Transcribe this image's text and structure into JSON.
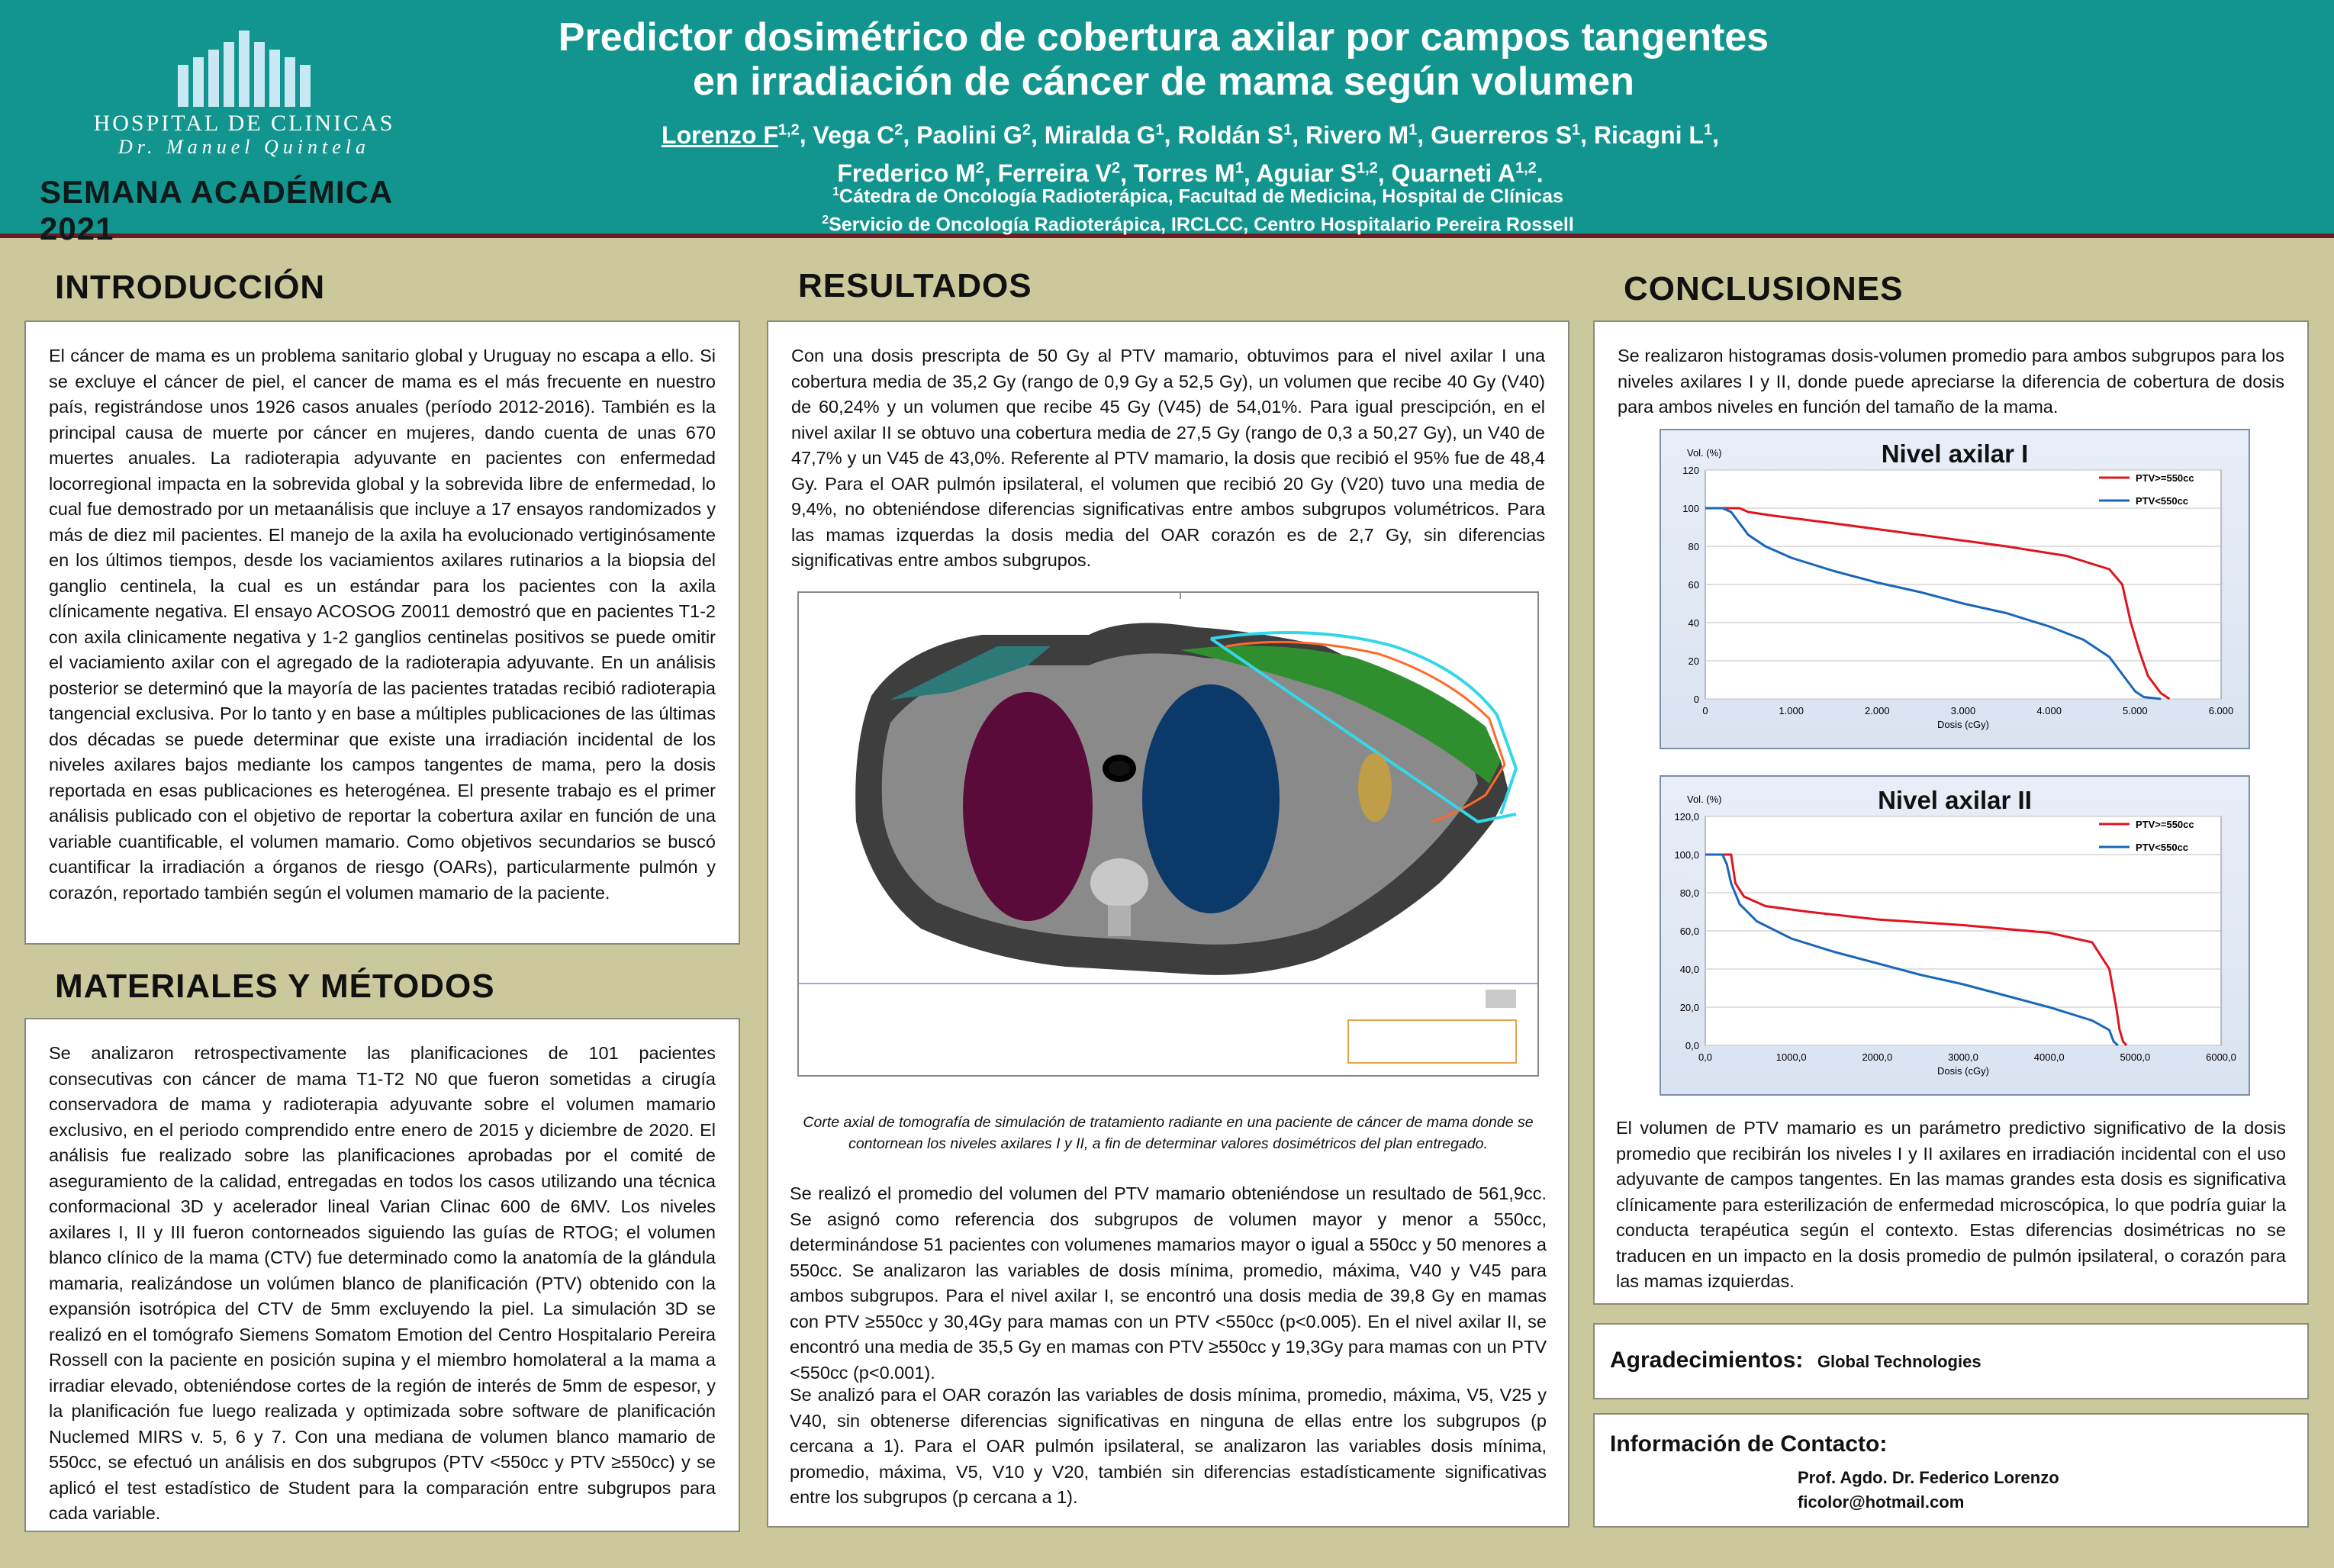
{
  "header": {
    "logo_name": "HOSPITAL DE CLINICAS",
    "logo_sub": "Dr. Manuel Quintela",
    "event": "SEMANA ACADÉMICA 2021",
    "title_line1": "Predictor dosimétrico de cobertura axilar por campos tangentes",
    "title_line2": "en irradiación de cáncer de mama según volumen",
    "authors_line1": [
      {
        "name": "Lorenzo F",
        "sup": "1,2",
        "underline": true
      },
      {
        "name": "Vega C",
        "sup": "2"
      },
      {
        "name": "Paolini G",
        "sup": "2"
      },
      {
        "name": "Miralda G",
        "sup": "1"
      },
      {
        "name": "Roldán S",
        "sup": "1"
      },
      {
        "name": "Rivero M",
        "sup": "1"
      },
      {
        "name": "Guerreros S",
        "sup": "1"
      },
      {
        "name": "Ricagni L",
        "sup": "1"
      }
    ],
    "authors_line2": [
      {
        "name": "Frederico M",
        "sup": "2"
      },
      {
        "name": "Ferreira V",
        "sup": "2"
      },
      {
        "name": "Torres M",
        "sup": "1"
      },
      {
        "name": "Aguiar S",
        "sup": "1,2"
      },
      {
        "name": "Quarneti A",
        "sup": "1,2"
      }
    ],
    "affil1_sup": "1",
    "affil1": "Cátedra de Oncología Radioterápica, Facultad de Medicina, Hospital de Clínicas",
    "affil2_sup": "2",
    "affil2": "Servicio de Oncología Radioterápica, IRCLCC, Centro Hospitalario Pereira Rossell"
  },
  "intro": {
    "heading": "INTRODUCCIÓN",
    "text": "El cáncer de mama es un problema sanitario global y Uruguay no escapa a ello. Si se excluye el cáncer de piel, el cancer de mama es el más frecuente en nuestro país, registrándose unos 1926 casos anuales (período 2012-2016). También es la principal causa de muerte por cáncer en mujeres, dando cuenta de unas 670 muertes anuales. La radioterapia adyuvante en pacientes con enfermedad locorregional impacta en la sobrevida global y la sobrevida libre de enfermedad, lo cual fue demostrado por un metaanálisis que incluye a 17 ensayos randomizados y más de diez mil pacientes. El manejo de la axila ha evolucionado vertiginósamente en los últimos tiempos, desde los vaciamientos axilares rutinarios a la biopsia del ganglio centinela, la cual es un estándar para los pacientes con la axila clínicamente negativa. El ensayo ACOSOG Z0011 demostró que en pacientes T1-2 con axila clinicamente negativa y 1-2 ganglios centinelas positivos se puede omitir el vaciamiento axilar con el agregado de la radioterapia adyuvante. En un análisis posterior se determinó que la mayoría de las pacientes tratadas recibió radioterapia tangencial exclusiva. Por lo tanto y en base a múltiples publicaciones de las últimas dos décadas se puede determinar que existe una irradiación incidental de los niveles axilares bajos mediante los campos tangentes de mama, pero la dosis reportada en esas publicaciones es heterogénea. El presente trabajo es el primer análisis publicado con el objetivo de reportar la cobertura axilar en función de una variable cuantificable, el volumen mamario. Como objetivos secundarios se buscó cuantificar la irradiación a órganos de riesgo (OARs), particularmente pulmón y corazón, reportado también según el volumen mamario de la paciente."
  },
  "methods": {
    "heading": "MATERIALES Y MÉTODOS",
    "text": "Se analizaron retrospectivamente las planificaciones de 101 pacientes consecutivas con cáncer de mama T1-T2 N0 que fueron sometidas a cirugía conservadora de mama y radioterapia adyuvante sobre el volumen mamario exclusivo, en el periodo comprendido entre enero de 2015 y diciembre de 2020. El análisis fue realizado sobre las planificaciones aprobadas por el comité de aseguramiento de la calidad, entregadas en todos los casos utilizando una técnica conformacional 3D y acelerador lineal Varian Clinac 600 de 6MV. Los niveles axilares I, II y III fueron contorneados siguiendo las guías de RTOG; el volumen blanco clínico de la mama (CTV) fue determinado como la anatomía de la glándula mamaria, realizándose un volúmen blanco de planificación (PTV) obtenido con la expansión isotrópica del CTV de 5mm excluyendo la piel. La simulación 3D se realizó en el tomógrafo Siemens Somatom Emotion del Centro Hospitalario Pereira Rossell con la paciente en posición supina y el miembro homolateral a la mama a irradiar elevado, obteniéndose cortes de la región de interés de 5mm de espesor, y la planificación fue luego realizada y optimizada sobre software de planificación Nuclemed MIRS v. 5, 6 y 7. Con una mediana de volumen blanco mamario de 550cc, se efectuó un análisis en dos subgrupos (PTV <550cc y PTV ≥550cc) y se aplicó el test estadístico de Student para la comparación entre subgrupos para cada variable."
  },
  "results": {
    "heading": "RESULTADOS",
    "text1": "Con una dosis prescripta de 50 Gy al PTV mamario, obtuvimos para el nivel axilar I una cobertura media de 35,2 Gy (rango de 0,9 Gy a 52,5 Gy), un volumen que recibe 40 Gy (V40) de 60,24% y un volumen que recibe 45 Gy (V45) de 54,01%. Para igual prescipción, en el nivel axilar II se obtuvo una cobertura media de 27,5 Gy (rango de 0,3 a 50,27 Gy), un V40 de 47,7% y un V45 de 43,0%. Referente al PTV mamario, la dosis que recibió el 95% fue de 48,4 Gy. Para el OAR pulmón ipsilateral, el volumen que recibió 20 Gy (V20) tuvo una media de 9,4%, no obteniéndose diferencias significativas entre ambos subgrupos volumétricos. Para las mamas izquerdas la dosis media del OAR corazón es de 2,7 Gy, sin diferencias significativas entre ambos subgrupos.",
    "caption": "Corte axial de tomografía de simulación de tratamiento radiante en una paciente de cáncer de mama donde se contornean los niveles axilares I y II, a fin de determinar valores dosimétricos del plan entregado.",
    "text2": "Se realizó el promedio del volumen del PTV mamario obteniéndose un resultado de 561,9cc. Se asignó como referencia dos subgrupos de volumen mayor y menor a 550cc, determinándose 51 pacientes con volumenes mamarios mayor o igual a 550cc y 50 menores a 550cc. Se analizaron las variables de dosis mínima, promedio, máxima, V40 y V45 para ambos subgrupos. Para el nivel axilar I, se encontró una dosis media de 39,8 Gy en mamas con PTV ≥550cc y 30,4Gy para mamas con un PTV <550cc (p<0.005). En el nivel axilar II, se encontró una media de 35,5 Gy en mamas con PTV ≥550cc y 19,3Gy para mamas con un PTV <550cc (p<0.001).",
    "text3": "Se analizó para el OAR corazón las variables de dosis mínima, promedio, máxima, V5, V25 y V40, sin obtenerse diferencias significativas en ninguna de ellas entre los subgrupos (p cercana a 1). Para el OAR pulmón ipsilateral, se analizaron las variables dosis mínima, promedio, máxima, V5, V10 y V20, también sin diferencias estadísticamente significativas entre los subgrupos (p cercana a 1)."
  },
  "conclusions": {
    "heading": "CONCLUSIONES",
    "text1": "Se realizaron histogramas dosis-volumen promedio para ambos subgrupos para los niveles axilares I y II, donde puede apreciarse la diferencia de cobertura de dosis para ambos niveles en función del tamaño de la mama.",
    "text2": "El volumen de PTV mamario es un parámetro predictivo significativo de la dosis promedio que recibirán los niveles I y II axilares en irradiación incidental con el uso adyuvante de campos tangentes. En las mamas grandes esta dosis es significativa clínicamente para esterilización de enfermedad microscópica, lo que podría guiar la conducta terapéutica según el contexto. Estas diferencias dosimétricas no se traducen en un impacto en la dosis promedio de pulmón ipsilateral, o corazón para las mamas izquierdas."
  },
  "ack": {
    "label": "Agradecimientos:",
    "value": "Global Technologies"
  },
  "contact": {
    "label": "Información de Contacto:",
    "name": "Prof. Agdo. Dr. Federico Lorenzo",
    "email": "ficolor@hotmail.com"
  },
  "colors": {
    "header_bg": "#12958f",
    "page_bg": "#cbc99c",
    "series_large": "#e0141e",
    "series_small": "#1a66b8"
  },
  "chart_data": [
    {
      "type": "line",
      "title": "Nivel axilar I",
      "ylabel": "Vol. (%)",
      "xlabel": "Dosis (cGy)",
      "xlim": [
        0,
        6000
      ],
      "ylim": [
        0,
        120
      ],
      "xticks": [
        "0",
        "1.000",
        "2.000",
        "3.000",
        "4.000",
        "5.000",
        "6.000"
      ],
      "yticks": [
        "0",
        "20",
        "40",
        "60",
        "80",
        "100",
        "120"
      ],
      "legend": "top-right",
      "series": [
        {
          "name": "PTV>=550cc",
          "color": "#e0141e",
          "x": [
            0,
            200,
            400,
            500,
            800,
            1500,
            2500,
            3500,
            4200,
            4700,
            4850,
            4950,
            5050,
            5150,
            5300,
            5400
          ],
          "y": [
            100,
            100,
            100,
            98,
            96,
            92,
            86,
            80,
            75,
            68,
            60,
            40,
            25,
            12,
            3,
            0
          ]
        },
        {
          "name": "PTV<550cc",
          "color": "#1a66b8",
          "x": [
            0,
            200,
            300,
            400,
            500,
            700,
            1000,
            1500,
            2000,
            2500,
            3000,
            3500,
            4000,
            4400,
            4700,
            4900,
            5000,
            5100,
            5300
          ],
          "y": [
            100,
            100,
            98,
            92,
            86,
            80,
            74,
            67,
            61,
            56,
            50,
            45,
            38,
            31,
            22,
            10,
            4,
            1,
            0
          ]
        }
      ]
    },
    {
      "type": "line",
      "title": "Nivel axilar II",
      "ylabel": "Vol. (%)",
      "xlabel": "Dosis (cGy)",
      "xlim": [
        0,
        6000
      ],
      "ylim": [
        0,
        120
      ],
      "xticks": [
        "0,0",
        "1000,0",
        "2000,0",
        "3000,0",
        "4000,0",
        "5000,0",
        "6000,0"
      ],
      "yticks": [
        "0,0",
        "20,0",
        "40,0",
        "60,0",
        "80,0",
        "100,0",
        "120,0"
      ],
      "legend": "top-right",
      "series": [
        {
          "name": "PTV>=550cc",
          "color": "#e0141e",
          "x": [
            0,
            200,
            300,
            350,
            450,
            700,
            1200,
            2000,
            3000,
            4000,
            4500,
            4700,
            4780,
            4820,
            4860,
            4900
          ],
          "y": [
            100,
            100,
            100,
            85,
            78,
            73,
            70,
            66,
            63,
            59,
            54,
            40,
            20,
            8,
            2,
            0
          ]
        },
        {
          "name": "PTV<550cc",
          "color": "#1a66b8",
          "x": [
            0,
            200,
            250,
            300,
            400,
            600,
            1000,
            1500,
            2000,
            2500,
            3000,
            3500,
            4000,
            4500,
            4700,
            4750,
            4800
          ],
          "y": [
            100,
            100,
            95,
            85,
            74,
            65,
            56,
            49,
            43,
            37,
            32,
            26,
            20,
            13,
            8,
            2,
            0
          ]
        }
      ]
    }
  ]
}
